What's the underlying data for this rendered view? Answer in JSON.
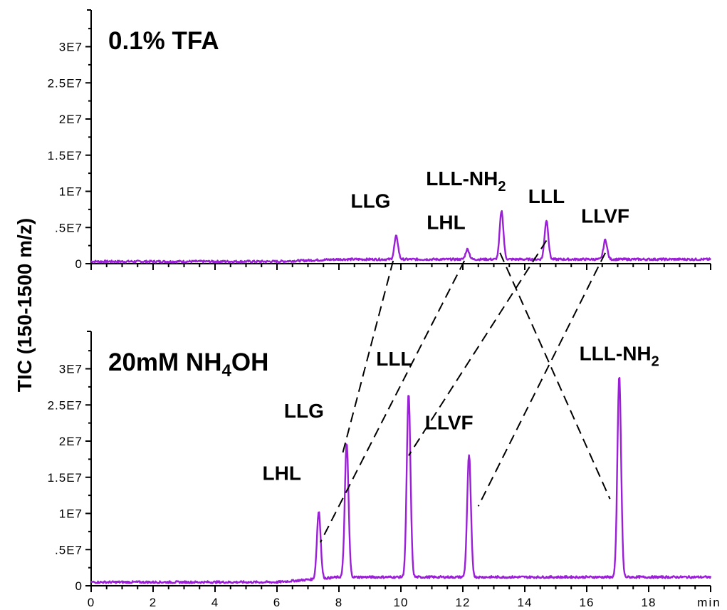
{
  "chart_data": {
    "type": "line",
    "ylabel": "TIC (150-1500 m/z)",
    "x_unit": "min",
    "xlim": [
      0,
      20
    ],
    "x_ticks": [
      0,
      2,
      4,
      6,
      8,
      10,
      12,
      14,
      16,
      18
    ],
    "x_tick_labels": [
      "0",
      "2",
      "4",
      "6",
      "8",
      "10",
      "12",
      "14",
      "16",
      "18"
    ],
    "ylim": [
      0,
      35000000
    ],
    "y_ticks": [
      0,
      5000000,
      10000000,
      15000000,
      20000000,
      25000000,
      30000000
    ],
    "y_tick_labels": [
      "0",
      ".5E7",
      "1E7",
      "1.5E7",
      "2E7",
      "2.5E7",
      "3E7"
    ],
    "color": "#9b1fd6",
    "panels": [
      {
        "title": "0.1% TFA",
        "title_sub": "",
        "title_tail": "",
        "baseline_start": 300000,
        "baseline_end": 600000,
        "peaks": [
          {
            "label": "LLG",
            "sub": "",
            "x": 9.85,
            "y": 3800000
          },
          {
            "label": "LHL",
            "sub": "",
            "x": 12.15,
            "y": 2000000
          },
          {
            "label": "LLL-NH",
            "sub": "2",
            "x": 13.25,
            "y": 7300000
          },
          {
            "label": "LLL",
            "sub": "",
            "x": 14.7,
            "y": 6000000
          },
          {
            "label": "LLVF",
            "sub": "",
            "x": 16.6,
            "y": 3300000
          }
        ]
      },
      {
        "title": "20mM NH",
        "title_sub": "4",
        "title_tail": "OH",
        "baseline_start": 500000,
        "baseline_end": 1200000,
        "peaks": [
          {
            "label": "LHL",
            "sub": "",
            "x": 7.35,
            "y": 10300000
          },
          {
            "label": "LLG",
            "sub": "",
            "x": 8.25,
            "y": 19700000
          },
          {
            "label": "LLL",
            "sub": "",
            "x": 10.25,
            "y": 26500000
          },
          {
            "label": "LLVF",
            "sub": "",
            "x": 12.2,
            "y": 18100000
          },
          {
            "label": "LLL-NH",
            "sub": "2",
            "x": 17.05,
            "y": 29000000
          }
        ]
      }
    ],
    "links": [
      {
        "peak": "LLG",
        "from": [
          9.75,
          400000
        ],
        "to": [
          8.1,
          18000000
        ]
      },
      {
        "peak": "LHL",
        "from": [
          12.05,
          400000
        ],
        "to": [
          7.4,
          6000000
        ]
      },
      {
        "peak": "LLL",
        "from": [
          14.7,
          3200000
        ],
        "to": [
          10.25,
          18000000
        ]
      },
      {
        "peak": "LLVF",
        "from": [
          16.6,
          1500000
        ],
        "to": [
          12.5,
          11000000
        ]
      },
      {
        "peak": "LLL-NH2",
        "from": [
          13.2,
          1500000
        ],
        "to": [
          16.75,
          12000000
        ]
      }
    ]
  }
}
